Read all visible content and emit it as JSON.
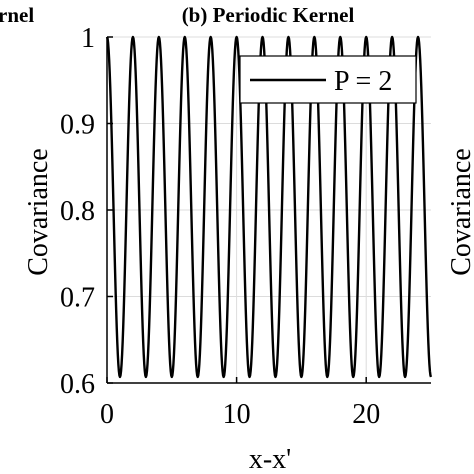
{
  "panels": {
    "left_title_fragment": "rnel",
    "right_ylabel_fragment": "Covariance"
  },
  "chart_data": {
    "type": "line",
    "title": "(b) Periodic Kernel",
    "xlabel": "x-x'",
    "ylabel": "Covariance",
    "xlim": [
      0,
      25
    ],
    "ylim": [
      0.6,
      1.0
    ],
    "xticks": [
      0,
      10,
      20
    ],
    "xtick_labels": [
      "0",
      "10",
      "20"
    ],
    "yticks": [
      0.6,
      0.7,
      0.8,
      0.9,
      1.0
    ],
    "ytick_labels": [
      "0.6",
      "0.7",
      "0.8",
      "0.9",
      "1"
    ],
    "grid": true,
    "legend": "top-right",
    "series": [
      {
        "name": "P = 2",
        "color": "#000000",
        "kernel": "periodic",
        "period": 2,
        "peaks_x": [
          0,
          2,
          4,
          6,
          8,
          10,
          12,
          14,
          16,
          18,
          20,
          22,
          24
        ],
        "peak_value": 1.0,
        "troughs_x": [
          1,
          3,
          5,
          7,
          9,
          11,
          13,
          15,
          17,
          19,
          21,
          23,
          25
        ],
        "trough_value": 0.607
      }
    ]
  }
}
